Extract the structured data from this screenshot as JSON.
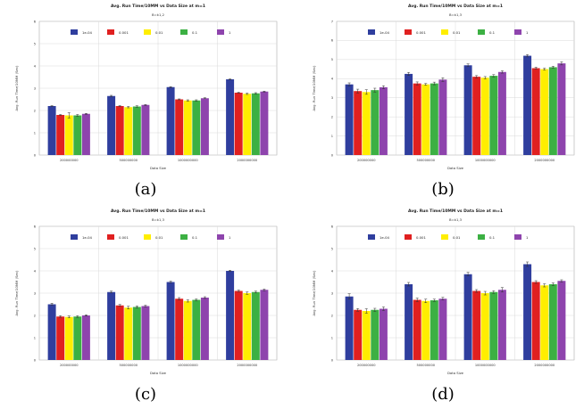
{
  "legend_colors": [
    "#2f3e9e",
    "#e02020",
    "#ffee00",
    "#3cb043",
    "#8e44ad"
  ],
  "chart_data": [
    {
      "caption": "(a)",
      "type": "bar",
      "title": "Avg. Run Time/10MM vs Data Size at m=1",
      "subtitle": "B=k1,2",
      "xlabel": "Data Size",
      "ylabel": "Avg. Run Time/10MM (Sec)",
      "ylim": [
        0,
        6
      ],
      "yticks": [
        0,
        1,
        2,
        3,
        4,
        5,
        6
      ],
      "categories": [
        "200000000",
        "500000000",
        "1000000000",
        "2000000000"
      ],
      "series": [
        {
          "name": "1e-04",
          "values": [
            2.2,
            2.65,
            3.05,
            3.4
          ],
          "err": [
            0.02,
            0.03,
            0.02,
            0.02
          ]
        },
        {
          "name": "0.001",
          "values": [
            1.8,
            2.2,
            2.5,
            2.8
          ],
          "err": [
            0.02,
            0.02,
            0.02,
            0.02
          ]
        },
        {
          "name": "0.01",
          "values": [
            1.78,
            2.15,
            2.45,
            2.75
          ],
          "err": [
            0.12,
            0.03,
            0.03,
            0.03
          ]
        },
        {
          "name": "0.1",
          "values": [
            1.78,
            2.18,
            2.45,
            2.77
          ],
          "err": [
            0.04,
            0.03,
            0.03,
            0.03
          ]
        },
        {
          "name": "1",
          "values": [
            1.85,
            2.25,
            2.55,
            2.85
          ],
          "err": [
            0.02,
            0.02,
            0.02,
            0.02
          ]
        }
      ]
    },
    {
      "caption": "(b)",
      "type": "bar",
      "title": "Avg. Run Time/10MM vs Data Size at m=1",
      "subtitle": "B=k1,3",
      "xlabel": "Data Size",
      "ylabel": "Avg. Run Time/10MM (Sec)",
      "ylim": [
        0,
        7
      ],
      "yticks": [
        0,
        1,
        2,
        3,
        4,
        5,
        6,
        7
      ],
      "categories": [
        "200000000",
        "500000000",
        "1000000000",
        "2000000000"
      ],
      "series": [
        {
          "name": "1e-04",
          "values": [
            3.7,
            4.25,
            4.7,
            5.2
          ],
          "err": [
            0.08,
            0.08,
            0.07,
            0.06
          ]
        },
        {
          "name": "0.001",
          "values": [
            3.35,
            3.75,
            4.1,
            4.55
          ],
          "err": [
            0.1,
            0.08,
            0.06,
            0.05
          ]
        },
        {
          "name": "0.01",
          "values": [
            3.3,
            3.7,
            4.05,
            4.5
          ],
          "err": [
            0.12,
            0.05,
            0.06,
            0.05
          ]
        },
        {
          "name": "0.1",
          "values": [
            3.4,
            3.75,
            4.15,
            4.6
          ],
          "err": [
            0.1,
            0.07,
            0.06,
            0.05
          ]
        },
        {
          "name": "1",
          "values": [
            3.55,
            3.95,
            4.35,
            4.8
          ],
          "err": [
            0.08,
            0.1,
            0.06,
            0.08
          ]
        }
      ]
    },
    {
      "caption": "(c)",
      "type": "bar",
      "title": "Avg. Run Time/10MM vs Data Size at m=1",
      "subtitle": "B=k1,3",
      "xlabel": "Data Size",
      "ylabel": "Avg. Run Time/10MM (Sec)",
      "ylim": [
        0,
        6
      ],
      "yticks": [
        0,
        1,
        2,
        3,
        4,
        5,
        6
      ],
      "categories": [
        "200000000",
        "500000000",
        "1000000000",
        "2000000000"
      ],
      "series": [
        {
          "name": "1e-04",
          "values": [
            2.5,
            3.05,
            3.5,
            4.0
          ],
          "err": [
            0.05,
            0.04,
            0.04,
            0.03
          ]
        },
        {
          "name": "0.001",
          "values": [
            1.95,
            2.45,
            2.75,
            3.1
          ],
          "err": [
            0.04,
            0.04,
            0.05,
            0.04
          ]
        },
        {
          "name": "0.01",
          "values": [
            1.93,
            2.35,
            2.65,
            3.0
          ],
          "err": [
            0.04,
            0.06,
            0.05,
            0.05
          ]
        },
        {
          "name": "0.1",
          "values": [
            1.95,
            2.38,
            2.7,
            3.05
          ],
          "err": [
            0.04,
            0.05,
            0.04,
            0.04
          ]
        },
        {
          "name": "1",
          "values": [
            2.0,
            2.42,
            2.8,
            3.15
          ],
          "err": [
            0.03,
            0.04,
            0.04,
            0.04
          ]
        }
      ]
    },
    {
      "caption": "(d)",
      "type": "bar",
      "title": "Avg. Run Time/10MM vs Data Size at m=1",
      "subtitle": "B=k1,3",
      "xlabel": "Data Size",
      "ylabel": "Avg. Run Time/10MM (Sec)",
      "ylim": [
        0,
        6
      ],
      "yticks": [
        0,
        1,
        2,
        3,
        4,
        5,
        6
      ],
      "categories": [
        "200000000",
        "500000000",
        "1000000000",
        "2000000000"
      ],
      "series": [
        {
          "name": "1e-04",
          "values": [
            2.85,
            3.4,
            3.85,
            4.3
          ],
          "err": [
            0.12,
            0.08,
            0.08,
            0.1
          ]
        },
        {
          "name": "0.001",
          "values": [
            2.25,
            2.7,
            3.1,
            3.5
          ],
          "err": [
            0.06,
            0.08,
            0.06,
            0.06
          ]
        },
        {
          "name": "0.01",
          "values": [
            2.2,
            2.65,
            3.0,
            3.35
          ],
          "err": [
            0.1,
            0.08,
            0.08,
            0.07
          ]
        },
        {
          "name": "0.1",
          "values": [
            2.25,
            2.68,
            3.05,
            3.4
          ],
          "err": [
            0.07,
            0.05,
            0.06,
            0.06
          ]
        },
        {
          "name": "1",
          "values": [
            2.3,
            2.75,
            3.15,
            3.55
          ],
          "err": [
            0.08,
            0.06,
            0.1,
            0.05
          ]
        }
      ]
    }
  ]
}
